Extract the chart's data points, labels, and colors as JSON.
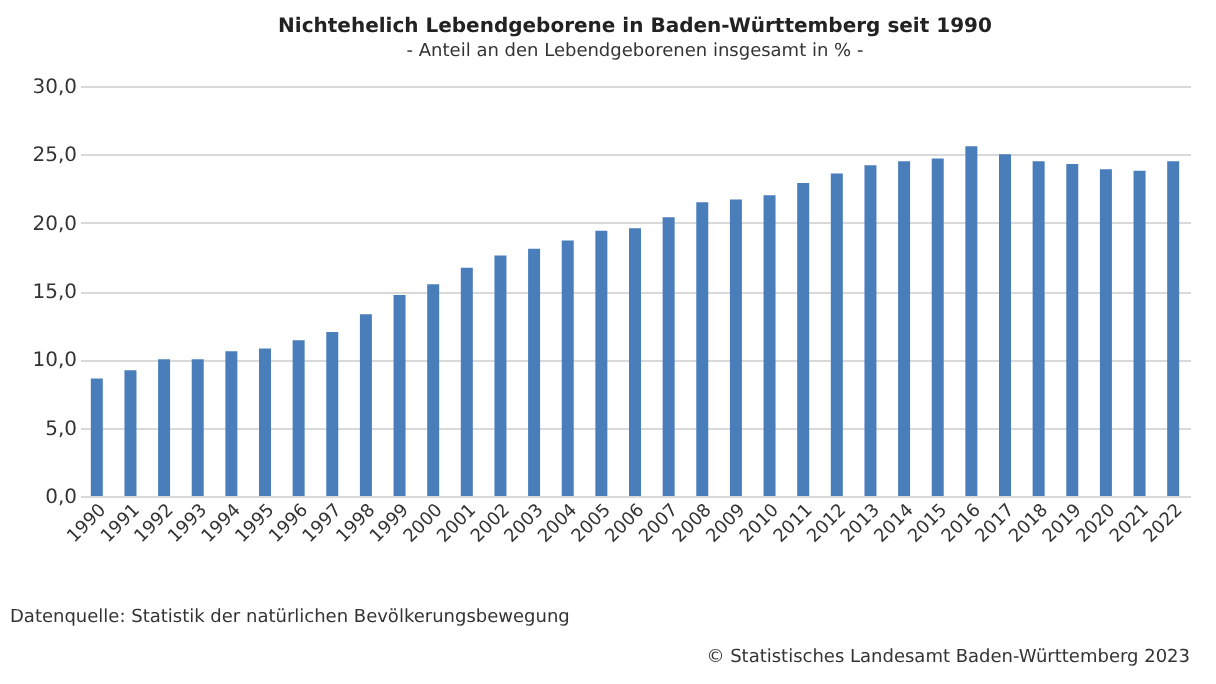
{
  "chart_data": {
    "type": "bar",
    "title": "Nichtehelich Lebendgeborene in Baden-Württemberg seit 1990",
    "subtitle": "- Anteil an den Lebendgeborenen insgesamt in % -",
    "categories": [
      "1990",
      "1991",
      "1992",
      "1993",
      "1994",
      "1995",
      "1996",
      "1997",
      "1998",
      "1999",
      "2000",
      "2001",
      "2002",
      "2003",
      "2004",
      "2005",
      "2006",
      "2007",
      "2008",
      "2009",
      "2010",
      "2011",
      "2012",
      "2013",
      "2014",
      "2015",
      "2016",
      "2017",
      "2018",
      "2019",
      "2020",
      "2021",
      "2022"
    ],
    "values": [
      8.6,
      9.2,
      10.0,
      10.0,
      10.6,
      10.8,
      11.4,
      12.0,
      13.3,
      14.7,
      15.5,
      16.7,
      17.6,
      18.1,
      18.7,
      19.4,
      19.6,
      20.4,
      21.5,
      21.7,
      22.0,
      22.9,
      23.6,
      24.2,
      24.5,
      24.7,
      25.6,
      25.0,
      24.5,
      24.3,
      23.9,
      23.8,
      24.5
    ],
    "color": "#4a7ebb",
    "ylim": [
      0,
      30
    ],
    "yticks": [
      {
        "value": 0,
        "label": "0,0"
      },
      {
        "value": 5,
        "label": "5,0"
      },
      {
        "value": 10,
        "label": "10,0"
      },
      {
        "value": 15,
        "label": "15,0"
      },
      {
        "value": 20,
        "label": "20,0"
      },
      {
        "value": 25,
        "label": "25,0"
      },
      {
        "value": 30,
        "label": "30,0"
      }
    ],
    "grid": "y",
    "annotations": [
      "Datenquelle: Statistik der natürlichen Bevölkerungsbewegung",
      "© Statistisches Landesamt Baden-Württemberg 2023"
    ]
  }
}
